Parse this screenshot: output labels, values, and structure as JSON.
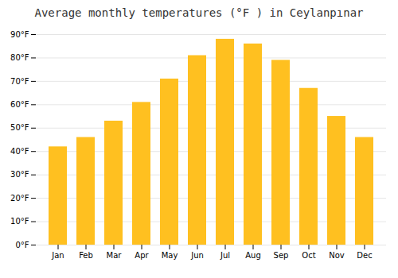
{
  "chart_data": {
    "type": "bar",
    "title": "Average monthly temperatures (°F ) in Ceylanpınar",
    "categories": [
      "Jan",
      "Feb",
      "Mar",
      "Apr",
      "May",
      "Jun",
      "Jul",
      "Aug",
      "Sep",
      "Oct",
      "Nov",
      "Dec"
    ],
    "values": [
      42,
      46,
      53,
      61,
      71,
      81,
      88,
      86,
      79,
      67,
      55,
      46
    ],
    "color": "#FFC020",
    "ylim": [
      0,
      90
    ],
    "yticks": [
      {
        "value": 0,
        "label": "0°F"
      },
      {
        "value": 10,
        "label": "10°F"
      },
      {
        "value": 20,
        "label": "20°F"
      },
      {
        "value": 30,
        "label": "30°F"
      },
      {
        "value": 40,
        "label": "40°F"
      },
      {
        "value": 50,
        "label": "50°F"
      },
      {
        "value": 60,
        "label": "60°F"
      },
      {
        "value": 70,
        "label": "70°F"
      },
      {
        "value": 80,
        "label": "80°F"
      },
      {
        "value": 90,
        "label": "90°F"
      }
    ],
    "grid": true
  }
}
